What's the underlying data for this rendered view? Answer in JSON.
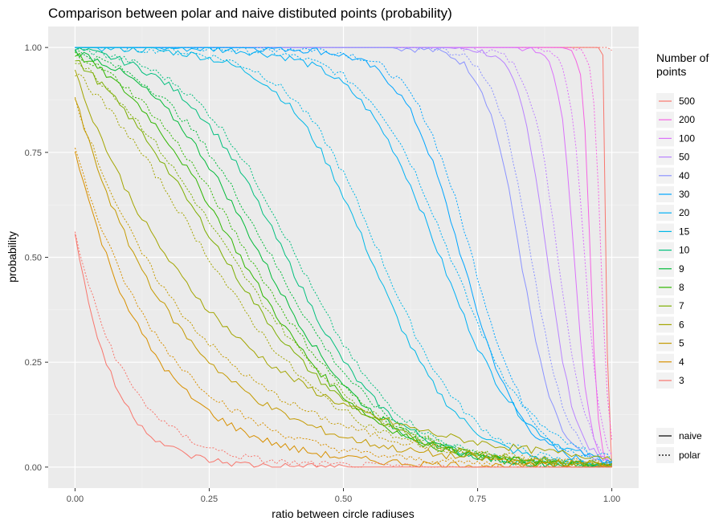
{
  "chart_data": {
    "type": "line",
    "title": "Comparison between polar and naive distibuted points (probability)",
    "xlabel": "ratio between circle radiuses",
    "ylabel": "probability",
    "xlim": [
      -0.05,
      1.05
    ],
    "ylim": [
      -0.05,
      1.05
    ],
    "x_ticks": [
      0,
      0.25,
      0.5,
      0.75,
      1
    ],
    "x_tick_labels": [
      "0.00",
      "0.25",
      "0.50",
      "0.75",
      "1.00"
    ],
    "y_ticks": [
      0,
      0.25,
      0.5,
      0.75,
      1
    ],
    "y_tick_labels": [
      "0.00",
      "0.25",
      "0.50",
      "0.75",
      "1.00"
    ],
    "grid": true,
    "legend_position": "right",
    "legend_color_title": "Number of\n  points",
    "legend_linetype_entries": [
      {
        "label": "naive",
        "dash": "solid"
      },
      {
        "label": "polar",
        "dash": "dotted"
      }
    ],
    "series": [
      {
        "name": "500",
        "color": "#F8766D"
      },
      {
        "name": "200",
        "color": "#F564E3"
      },
      {
        "name": "100",
        "color": "#DB72FB"
      },
      {
        "name": "50",
        "color": "#B983FF"
      },
      {
        "name": "40",
        "color": "#8B93FF"
      },
      {
        "name": "30",
        "color": "#00A5FF"
      },
      {
        "name": "20",
        "color": "#00B0F6"
      },
      {
        "name": "15",
        "color": "#00B8E7"
      },
      {
        "name": "10",
        "color": "#00BF7D"
      },
      {
        "name": "9",
        "color": "#00BA38"
      },
      {
        "name": "8",
        "color": "#2FB600"
      },
      {
        "name": "7",
        "color": "#7CAE00"
      },
      {
        "name": "6",
        "color": "#A3A500"
      },
      {
        "name": "5",
        "color": "#C49A00"
      },
      {
        "name": "4",
        "color": "#D89000"
      },
      {
        "name": "3",
        "color": "#F8766D"
      }
    ],
    "naive_y_at_x0": {
      "3": 0.56,
      "4": 0.76,
      "5": 0.88,
      "6": 0.94,
      "7": 0.97,
      "8": 0.985,
      "9": 0.99,
      "10": 0.995,
      "15": 1,
      "20": 1,
      "30": 1,
      "40": 1,
      "50": 1,
      "100": 1,
      "200": 1,
      "500": 1
    },
    "polar_y_at_x0": {
      "3": 0.56,
      "4": 0.76,
      "5": 0.88,
      "6": 0.94,
      "7": 0.97,
      "8": 0.985,
      "9": 0.99,
      "10": 0.995,
      "15": 1,
      "20": 1,
      "30": 1,
      "40": 1,
      "50": 1,
      "100": 1,
      "200": 1,
      "500": 1
    },
    "curve_shape_x_at_half": {
      "3": 0.05,
      "4": 0.1,
      "5": 0.14,
      "6": 0.19,
      "7": 0.24,
      "8": 0.29,
      "9": 0.34,
      "10": 0.39,
      "15": 0.55,
      "20": 0.68,
      "30": 0.72,
      "40": 0.83,
      "50": 0.88,
      "100": 0.93,
      "200": 0.96,
      "500": 0.99
    }
  }
}
